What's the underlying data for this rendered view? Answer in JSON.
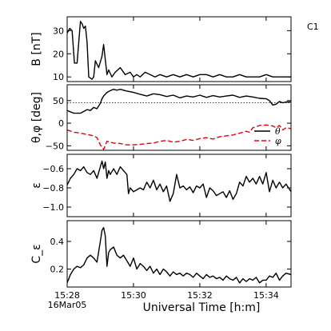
{
  "figure": {
    "corner_label": "C1",
    "xlabel": "Universal Time [h:m]",
    "date_label": "16Mar05"
  },
  "chart_data": {
    "type": "line",
    "x_ticks": [
      {
        "value": 0,
        "label": "15:28"
      },
      {
        "value": 2,
        "label": "15:30"
      },
      {
        "value": 4,
        "label": "15:32"
      },
      {
        "value": 6,
        "label": "15:34"
      }
    ],
    "xlim": [
      0,
      6.75
    ],
    "panels": [
      {
        "ylabel": "B [nT]",
        "ylim": [
          8,
          36
        ],
        "y_ticks": [
          {
            "value": 10,
            "label": "10"
          },
          {
            "value": 20,
            "label": "20"
          },
          {
            "value": 30,
            "label": "30"
          }
        ],
        "series": [
          {
            "color": "#000000",
            "dash": "",
            "x": [
              0,
              0.08,
              0.15,
              0.22,
              0.3,
              0.35,
              0.4,
              0.45,
              0.5,
              0.55,
              0.6,
              0.65,
              0.75,
              0.8,
              0.85,
              0.95,
              1.05,
              1.1,
              1.2,
              1.25,
              1.35,
              1.45,
              1.6,
              1.75,
              1.9,
              2.0,
              2.1,
              2.2,
              2.35,
              2.5,
              2.65,
              2.8,
              3.0,
              3.2,
              3.4,
              3.6,
              3.8,
              4.0,
              4.2,
              4.4,
              4.6,
              4.8,
              5.0,
              5.2,
              5.4,
              5.6,
              5.8,
              6.0,
              6.2,
              6.4,
              6.6,
              6.75
            ],
            "y": [
              29,
              31,
              30,
              16,
              16,
              25,
              34,
              33,
              31,
              32,
              25,
              10,
              9,
              10,
              17,
              14,
              19,
              24,
              11,
              13,
              10,
              12,
              14,
              11,
              12,
              10,
              11,
              10,
              12,
              11,
              10,
              11,
              10,
              11,
              10,
              11,
              10,
              11,
              11,
              10,
              11,
              10,
              10,
              11,
              10,
              10,
              10,
              11,
              10,
              10,
              10,
              10
            ]
          }
        ]
      },
      {
        "ylabel": "θ,φ [deg]",
        "ylim": [
          -60,
          85
        ],
        "y_ticks": [
          {
            "value": -50,
            "label": "−50"
          },
          {
            "value": 0,
            "label": "0"
          },
          {
            "value": 50,
            "label": "50"
          }
        ],
        "reference_line": 45,
        "legend": [
          {
            "label": "θ",
            "color": "#000000",
            "dash": ""
          },
          {
            "label": "φ",
            "color": "#e8000b",
            "dash": "6,3"
          }
        ],
        "series": [
          {
            "color": "#000000",
            "dash": "",
            "x": [
              0,
              0.2,
              0.4,
              0.6,
              0.7,
              0.8,
              0.9,
              1.0,
              1.05,
              1.1,
              1.2,
              1.3,
              1.4,
              1.5,
              1.6,
              1.7,
              1.8,
              2.0,
              2.2,
              2.4,
              2.6,
              2.8,
              3.0,
              3.2,
              3.4,
              3.6,
              3.8,
              4.0,
              4.2,
              4.4,
              4.6,
              4.8,
              5.0,
              5.2,
              5.4,
              5.6,
              5.8,
              6.0,
              6.1,
              6.2,
              6.3,
              6.4,
              6.5,
              6.6,
              6.75
            ],
            "y": [
              28,
              22,
              22,
              30,
              28,
              35,
              32,
              44,
              54,
              60,
              68,
              72,
              75,
              73,
              75,
              73,
              71,
              68,
              64,
              60,
              65,
              63,
              59,
              62,
              56,
              60,
              58,
              62,
              57,
              61,
              58,
              60,
              62,
              57,
              60,
              58,
              55,
              54,
              50,
              40,
              42,
              48,
              45,
              47,
              47
            ]
          },
          {
            "color": "#e8000b",
            "dash": "6,3",
            "x": [
              0,
              0.2,
              0.4,
              0.6,
              0.8,
              0.9,
              1.0,
              1.1,
              1.2,
              1.3,
              1.4,
              1.6,
              1.8,
              2.0,
              2.2,
              2.4,
              2.6,
              2.8,
              3.0,
              3.2,
              3.4,
              3.6,
              3.8,
              4.0,
              4.2,
              4.4,
              4.6,
              4.8,
              5.0,
              5.2,
              5.4,
              5.5,
              5.6,
              5.7,
              5.8,
              6.0,
              6.2,
              6.3,
              6.4,
              6.5,
              6.6,
              6.75
            ],
            "y": [
              -15,
              -20,
              -22,
              -25,
              -28,
              -32,
              -48,
              -58,
              -40,
              -42,
              -44,
              -45,
              -48,
              -48,
              -47,
              -45,
              -44,
              -40,
              -38,
              -42,
              -40,
              -36,
              -38,
              -34,
              -32,
              -35,
              -30,
              -28,
              -26,
              -22,
              -18,
              -20,
              -10,
              -8,
              -5,
              -4,
              -6,
              -10,
              -5,
              -15,
              -10,
              -12
            ]
          }
        ]
      },
      {
        "ylabel": "ε",
        "ylim": [
          -1.1,
          -0.45
        ],
        "y_ticks": [
          {
            "value": -1.0,
            "label": "−1.0"
          },
          {
            "value": -0.8,
            "label": "−0.8"
          },
          {
            "value": -0.6,
            "label": "−0.6"
          }
        ],
        "series": [
          {
            "color": "#000000",
            "dash": "",
            "x": [
              0,
              0.1,
              0.2,
              0.3,
              0.4,
              0.5,
              0.6,
              0.7,
              0.8,
              0.9,
              1.0,
              1.05,
              1.1,
              1.15,
              1.2,
              1.25,
              1.3,
              1.4,
              1.5,
              1.6,
              1.7,
              1.8,
              1.85,
              1.9,
              2.0,
              2.1,
              2.2,
              2.3,
              2.4,
              2.5,
              2.6,
              2.7,
              2.8,
              2.9,
              3.0,
              3.1,
              3.2,
              3.3,
              3.4,
              3.5,
              3.6,
              3.7,
              3.8,
              3.9,
              4.0,
              4.1,
              4.2,
              4.3,
              4.4,
              4.5,
              4.6,
              4.7,
              4.8,
              4.9,
              5.0,
              5.1,
              5.2,
              5.3,
              5.4,
              5.5,
              5.6,
              5.7,
              5.8,
              5.9,
              6.0,
              6.1,
              6.2,
              6.3,
              6.4,
              6.5,
              6.6,
              6.75
            ],
            "y": [
              -0.77,
              -0.7,
              -0.66,
              -0.6,
              -0.62,
              -0.58,
              -0.64,
              -0.66,
              -0.62,
              -0.7,
              -0.58,
              -0.52,
              -0.6,
              -0.53,
              -0.7,
              -0.62,
              -0.66,
              -0.6,
              -0.66,
              -0.58,
              -0.62,
              -0.66,
              -0.86,
              -0.8,
              -0.84,
              -0.82,
              -0.8,
              -0.82,
              -0.74,
              -0.8,
              -0.72,
              -0.82,
              -0.76,
              -0.84,
              -0.78,
              -0.94,
              -0.86,
              -0.66,
              -0.8,
              -0.78,
              -0.82,
              -0.79,
              -0.85,
              -0.78,
              -0.8,
              -0.76,
              -0.9,
              -0.8,
              -0.83,
              -0.88,
              -0.86,
              -0.84,
              -0.9,
              -0.83,
              -0.92,
              -0.86,
              -0.74,
              -0.78,
              -0.68,
              -0.74,
              -0.7,
              -0.76,
              -0.68,
              -0.76,
              -0.64,
              -0.84,
              -0.72,
              -0.8,
              -0.74,
              -0.8,
              -0.76,
              -0.84
            ]
          }
        ]
      },
      {
        "ylabel": "C_ε",
        "ylim": [
          0.07,
          0.55
        ],
        "y_ticks": [
          {
            "value": 0.2,
            "label": "0.2"
          },
          {
            "value": 0.4,
            "label": "0.4"
          }
        ],
        "series": [
          {
            "color": "#000000",
            "dash": "",
            "x": [
              0,
              0.1,
              0.2,
              0.3,
              0.4,
              0.5,
              0.6,
              0.7,
              0.8,
              0.9,
              1.0,
              1.05,
              1.1,
              1.15,
              1.2,
              1.25,
              1.3,
              1.4,
              1.5,
              1.6,
              1.7,
              1.8,
              1.9,
              2.0,
              2.1,
              2.2,
              2.3,
              2.4,
              2.5,
              2.6,
              2.7,
              2.8,
              2.9,
              3.0,
              3.1,
              3.2,
              3.3,
              3.4,
              3.5,
              3.6,
              3.7,
              3.8,
              3.9,
              4.0,
              4.1,
              4.2,
              4.3,
              4.4,
              4.5,
              4.6,
              4.7,
              4.8,
              4.9,
              5.0,
              5.1,
              5.2,
              5.3,
              5.4,
              5.5,
              5.6,
              5.7,
              5.8,
              5.9,
              6.0,
              6.1,
              6.2,
              6.3,
              6.4,
              6.5,
              6.6,
              6.75
            ],
            "y": [
              0.1,
              0.16,
              0.2,
              0.22,
              0.21,
              0.23,
              0.28,
              0.3,
              0.28,
              0.25,
              0.4,
              0.48,
              0.5,
              0.44,
              0.22,
              0.32,
              0.34,
              0.36,
              0.3,
              0.28,
              0.3,
              0.26,
              0.22,
              0.28,
              0.2,
              0.24,
              0.22,
              0.19,
              0.22,
              0.17,
              0.2,
              0.16,
              0.2,
              0.18,
              0.15,
              0.18,
              0.16,
              0.17,
              0.15,
              0.17,
              0.16,
              0.14,
              0.17,
              0.15,
              0.13,
              0.16,
              0.14,
              0.15,
              0.13,
              0.14,
              0.12,
              0.15,
              0.13,
              0.12,
              0.14,
              0.1,
              0.13,
              0.11,
              0.13,
              0.12,
              0.14,
              0.1,
              0.12,
              0.12,
              0.15,
              0.14,
              0.17,
              0.12,
              0.15,
              0.17,
              0.16
            ]
          }
        ]
      }
    ]
  }
}
